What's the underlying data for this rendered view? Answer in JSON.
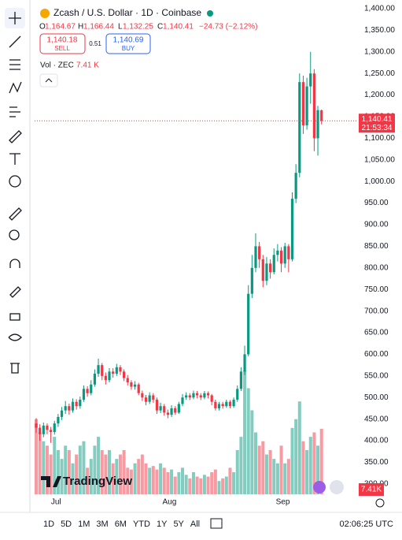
{
  "header": {
    "symbol": "Zcash / U.S. Dollar · 1D · Coinbase",
    "o": "O",
    "open": "1,164.67",
    "h": "H",
    "high": "1,166.44",
    "l": "L",
    "low": "1,132.25",
    "c": "C",
    "close": "1,140.41",
    "change": "−24.73 (−2.12%)",
    "sell_price": "1,140.18",
    "sell": "SELL",
    "spread": "0.51",
    "buy_price": "1,140.69",
    "buy": "BUY",
    "volume_label": "Vol · ZEC",
    "volume_value": "7.41 K"
  },
  "price_badge": {
    "price": "1,140.41",
    "countdown": "21:53:34"
  },
  "volume_badge": "7.41K",
  "logo": "TradingView",
  "timeframes": [
    "1D",
    "5D",
    "1M",
    "3M",
    "6M",
    "YTD",
    "1Y",
    "5Y",
    "All"
  ],
  "clock": "02:06:25 UTC",
  "chart_data": {
    "type": "candlestick",
    "up_color": "#089981",
    "down_color": "#f23645",
    "categories": [
      null,
      null,
      null,
      null,
      null,
      "Jul",
      null,
      null,
      null,
      null,
      null,
      null,
      null,
      null,
      null,
      null,
      null,
      null,
      null,
      null,
      null,
      null,
      null,
      null,
      null,
      null,
      null,
      null,
      null,
      null,
      null,
      null,
      null,
      null,
      null,
      null,
      "Aug",
      null,
      null,
      null,
      null,
      null,
      null,
      null,
      null,
      null,
      null,
      null,
      null,
      null,
      null,
      null,
      null,
      null,
      null,
      null,
      null,
      null,
      null,
      null,
      null,
      null,
      null,
      null,
      null,
      null,
      null,
      "Sep",
      null,
      null,
      null,
      null,
      null,
      null,
      null,
      null,
      null,
      null,
      null
    ],
    "open": [
      440,
      430,
      415,
      435,
      425,
      420,
      440,
      455,
      470,
      480,
      470,
      490,
      480,
      495,
      520,
      510,
      530,
      555,
      575,
      550,
      540,
      560,
      555,
      570,
      560,
      545,
      535,
      525,
      530,
      510,
      500,
      490,
      505,
      495,
      470,
      480,
      465,
      460,
      475,
      465,
      485,
      500,
      505,
      500,
      510,
      505,
      500,
      510,
      505,
      490,
      475,
      485,
      480,
      490,
      480,
      495,
      520,
      560,
      600,
      740,
      800,
      850,
      820,
      770,
      810,
      790,
      830,
      840,
      810,
      850,
      820,
      960,
      1020,
      1230,
      1130,
      1220,
      1250,
      1100,
      1164.67
    ],
    "high": [
      452,
      438,
      442,
      440,
      432,
      446,
      462,
      478,
      492,
      486,
      498,
      496,
      502,
      528,
      526,
      540,
      565,
      590,
      580,
      558,
      568,
      568,
      578,
      575,
      565,
      552,
      540,
      538,
      534,
      516,
      506,
      512,
      510,
      500,
      488,
      485,
      472,
      482,
      480,
      490,
      508,
      512,
      510,
      516,
      515,
      510,
      515,
      514,
      508,
      495,
      490,
      490,
      495,
      494,
      500,
      528,
      570,
      620,
      760,
      830,
      880,
      860,
      830,
      825,
      820,
      845,
      855,
      848,
      858,
      855,
      975,
      1040,
      1250,
      1245,
      1240,
      1300,
      1260,
      1175,
      1166.44
    ],
    "low": [
      418,
      400,
      408,
      415,
      395,
      414,
      432,
      448,
      462,
      460,
      465,
      472,
      474,
      490,
      502,
      505,
      525,
      548,
      540,
      530,
      535,
      546,
      550,
      552,
      538,
      528,
      518,
      518,
      505,
      492,
      482,
      485,
      488,
      462,
      464,
      458,
      452,
      455,
      460,
      462,
      480,
      495,
      494,
      496,
      498,
      494,
      496,
      498,
      482,
      470,
      470,
      474,
      476,
      475,
      476,
      490,
      515,
      552,
      595,
      730,
      790,
      800,
      755,
      760,
      775,
      785,
      815,
      790,
      800,
      790,
      815,
      950,
      1010,
      1110,
      1120,
      1180,
      1070,
      1060,
      1132.25
    ],
    "close": [
      430,
      415,
      435,
      425,
      420,
      440,
      455,
      470,
      480,
      470,
      490,
      480,
      495,
      520,
      510,
      530,
      555,
      575,
      550,
      540,
      560,
      555,
      570,
      560,
      545,
      535,
      525,
      530,
      510,
      500,
      490,
      505,
      495,
      470,
      480,
      465,
      460,
      475,
      465,
      485,
      500,
      505,
      500,
      510,
      505,
      500,
      510,
      505,
      490,
      475,
      485,
      480,
      490,
      480,
      495,
      520,
      560,
      600,
      740,
      800,
      850,
      820,
      770,
      810,
      790,
      830,
      840,
      810,
      850,
      820,
      960,
      1020,
      1230,
      1130,
      1220,
      1250,
      1100,
      1165,
      1140.41
    ],
    "volume": [
      8.5,
      7.0,
      6.0,
      5.5,
      4.5,
      6.5,
      5.0,
      4.0,
      5.5,
      5.0,
      3.5,
      4.5,
      5.5,
      6.0,
      3.0,
      4.0,
      5.5,
      6.5,
      5.0,
      4.5,
      5.0,
      3.5,
      4.0,
      4.5,
      5.0,
      3.0,
      2.8,
      3.5,
      4.0,
      4.5,
      3.5,
      3.0,
      3.2,
      2.8,
      3.5,
      3.0,
      2.5,
      2.8,
      2.0,
      2.5,
      3.0,
      2.2,
      1.8,
      2.5,
      2.0,
      1.8,
      2.2,
      2.0,
      2.5,
      2.8,
      1.5,
      1.8,
      2.0,
      3.0,
      2.5,
      5.0,
      6.5,
      14.0,
      12.0,
      9.5,
      7.0,
      5.5,
      6.0,
      4.5,
      5.0,
      4.0,
      3.5,
      5.5,
      3.5,
      4.0,
      7.5,
      8.5,
      10.5,
      6.0,
      5.0,
      6.5,
      7.0,
      5.5,
      7.41
    ],
    "ylim": [
      276,
      1420
    ],
    "yticks": [
      {
        "value": 300,
        "label": "300.00"
      },
      {
        "value": 350,
        "label": "350.00"
      },
      {
        "value": 400,
        "label": "400.00"
      },
      {
        "value": 450,
        "label": "450.00"
      },
      {
        "value": 500,
        "label": "500.00"
      },
      {
        "value": 550,
        "label": "550.00"
      },
      {
        "value": 600,
        "label": "600.00"
      },
      {
        "value": 650,
        "label": "650.00"
      },
      {
        "value": 700,
        "label": "700.00"
      },
      {
        "value": 750,
        "label": "750.00"
      },
      {
        "value": 800,
        "label": "800.00"
      },
      {
        "value": 850,
        "label": "850.00"
      },
      {
        "value": 900,
        "label": "900.00"
      },
      {
        "value": 950,
        "label": "950.00"
      },
      {
        "value": 1000,
        "label": "1,000.00"
      },
      {
        "value": 1050,
        "label": "1,050.00"
      },
      {
        "value": 1100,
        "label": "1,100.00"
      },
      {
        "value": 1150,
        "label": "1,150.00"
      },
      {
        "value": 1200,
        "label": "1,200.00"
      },
      {
        "value": 1250,
        "label": "1,250.00"
      },
      {
        "value": 1300,
        "label": "1,300.00"
      },
      {
        "value": 1350,
        "label": "1,350.00"
      },
      {
        "value": 1400,
        "label": "1,400.00"
      }
    ],
    "grid": false
  }
}
